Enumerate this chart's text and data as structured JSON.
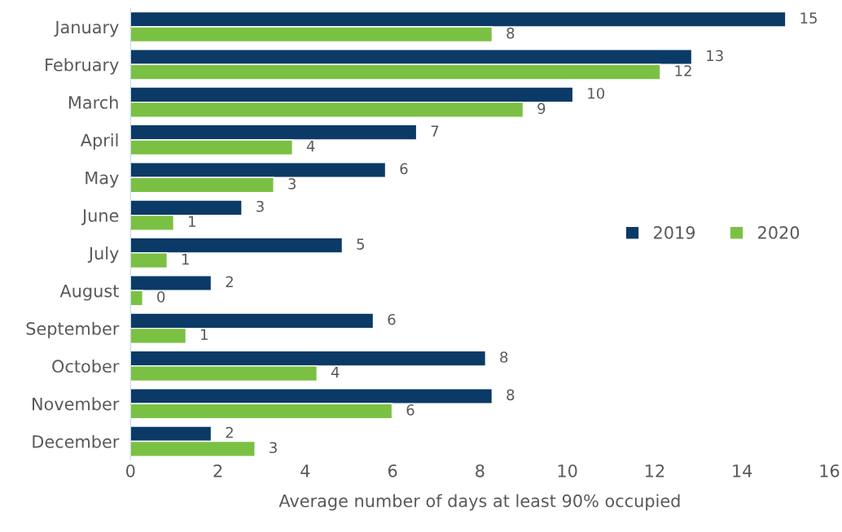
{
  "chart_data": {
    "type": "bar",
    "orientation": "horizontal",
    "xlabel": "Average number of days at least 90% occupied",
    "categories": [
      "January",
      "February",
      "March",
      "April",
      "May",
      "June",
      "July",
      "August",
      "September",
      "October",
      "November",
      "December"
    ],
    "series": [
      {
        "name": "2019",
        "color": "#0b3a66",
        "values": [
          15,
          12.85,
          10.13,
          6.55,
          5.84,
          2.55,
          4.85,
          1.85,
          5.56,
          8.13,
          8.28,
          1.85
        ],
        "value_labels": [
          "15",
          "13",
          "10",
          "7",
          "6",
          "3",
          "5",
          "2",
          "6",
          "8",
          "8",
          "2"
        ]
      },
      {
        "name": "2020",
        "color": "#7ac143",
        "values": [
          8.28,
          12.13,
          8.99,
          3.71,
          3.28,
          0.99,
          0.84,
          0.28,
          1.27,
          4.27,
          5.99,
          2.85
        ],
        "value_labels": [
          "8",
          "12",
          "9",
          "4",
          "3",
          "1",
          "1",
          "0",
          "1",
          "4",
          "6",
          "3"
        ]
      }
    ],
    "xlim": [
      0,
      16
    ],
    "xticks": [
      0,
      2,
      4,
      6,
      8,
      10,
      12,
      14,
      16
    ],
    "grid": false,
    "legend": "right"
  }
}
